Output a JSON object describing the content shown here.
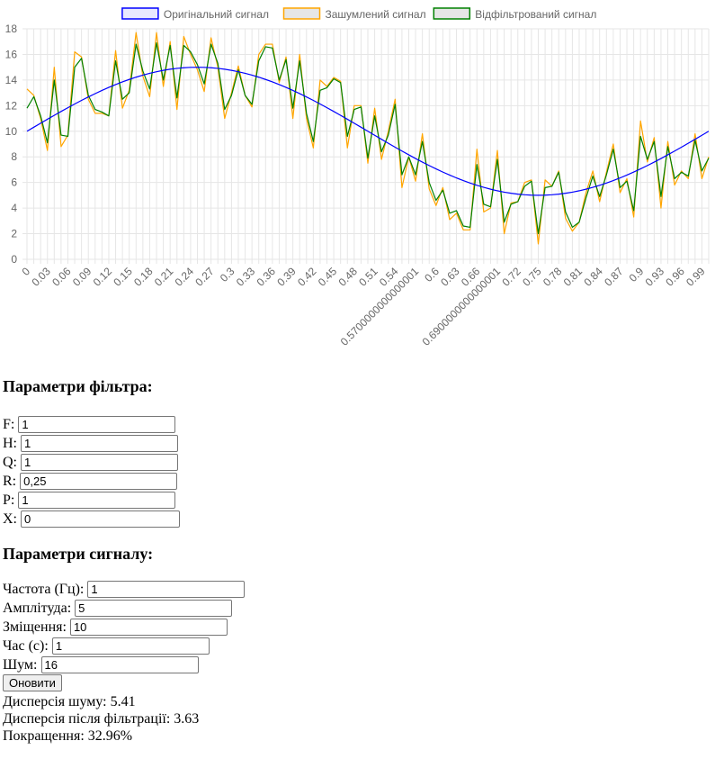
{
  "chart_data": {
    "type": "line",
    "legend_position": "top-center",
    "grid": true,
    "ylim": [
      0,
      18
    ],
    "yticks": [
      0,
      2,
      4,
      6,
      8,
      10,
      12,
      14,
      16,
      18
    ],
    "x": [
      0,
      0.01,
      0.02,
      0.03,
      0.04,
      0.05,
      0.06,
      0.07,
      0.08,
      0.09,
      0.1,
      0.11,
      0.12,
      0.13,
      0.14,
      0.15,
      0.16,
      0.17,
      0.18,
      0.19,
      0.2,
      0.21,
      0.22,
      0.23,
      0.24,
      0.25,
      0.26,
      0.27,
      0.28,
      0.29,
      0.3,
      0.31,
      0.32,
      0.33,
      0.34,
      0.35,
      0.36,
      0.37,
      0.38,
      0.39,
      0.4,
      0.41,
      0.42,
      0.43,
      0.44,
      0.45,
      0.46,
      0.47,
      0.48,
      0.49,
      0.5,
      0.51,
      0.52,
      0.53,
      0.54,
      0.55,
      0.56,
      0.57,
      0.58,
      0.59,
      0.6,
      0.61,
      0.62,
      0.63,
      0.64,
      0.65,
      0.66,
      0.67,
      0.68,
      0.69,
      0.7,
      0.71,
      0.72,
      0.73,
      0.74,
      0.75,
      0.76,
      0.77,
      0.78,
      0.79,
      0.8,
      0.81,
      0.82,
      0.83,
      0.84,
      0.85,
      0.86,
      0.87,
      0.88,
      0.89,
      0.9,
      0.91,
      0.92,
      0.93,
      0.94,
      0.95,
      0.96,
      0.97,
      0.98,
      0.99,
      1.0
    ],
    "xtick_labels": [
      "0",
      "0.03",
      "0.06",
      "0.09",
      "0.12",
      "0.15",
      "0.18",
      "0.21",
      "0.24",
      "0.27",
      "0.3",
      "0.33",
      "0.36",
      "0.39",
      "0.42",
      "0.45",
      "0.48",
      "0.51",
      "0.54",
      "0.5700000000000001",
      "0.6",
      "0.63",
      "0.66",
      "0.6900000000000001",
      "0.72",
      "0.75",
      "0.78",
      "0.81",
      "0.84",
      "0.87",
      "0.9",
      "0.93",
      "0.96",
      "0.99"
    ],
    "xtick_values": [
      0,
      0.03,
      0.06,
      0.09,
      0.12,
      0.15,
      0.18,
      0.21,
      0.24,
      0.27,
      0.3,
      0.33,
      0.36,
      0.39,
      0.42,
      0.45,
      0.48,
      0.51,
      0.54,
      0.57,
      0.6,
      0.63,
      0.66,
      0.69,
      0.72,
      0.75,
      0.78,
      0.81,
      0.84,
      0.87,
      0.9,
      0.93,
      0.96,
      0.99
    ],
    "series": [
      {
        "name": "Оригінальний сигнал",
        "color": "#0000ff",
        "fill": "#e8e8ff",
        "width": 1.2,
        "formula": "10 + 5*sin(2*pi*x)"
      },
      {
        "name": "Зашумлений сигнал",
        "color": "#ffa500",
        "fill": "#e6e6e6",
        "width": 1.2,
        "values": [
          13.3,
          12.8,
          11.0,
          8.5,
          15.0,
          8.8,
          9.7,
          16.2,
          15.8,
          12.5,
          11.4,
          11.4,
          11.2,
          16.3,
          11.8,
          13.2,
          17.7,
          14.3,
          12.7,
          17.7,
          13.5,
          17.0,
          11.7,
          17.4,
          16.0,
          14.8,
          13.1,
          17.3,
          15.0,
          11.0,
          13.0,
          15.1,
          12.8,
          11.9,
          16.0,
          16.8,
          16.8,
          13.8,
          15.8,
          11.0,
          16.0,
          11.0,
          8.7,
          14.0,
          13.5,
          14.2,
          13.9,
          8.7,
          12.0,
          12.0,
          7.5,
          11.8,
          7.8,
          10.0,
          12.5,
          5.6,
          8.0,
          6.1,
          9.8,
          5.5,
          4.2,
          5.6,
          3.1,
          3.6,
          2.3,
          2.3,
          8.6,
          3.7,
          4.0,
          8.5,
          2.0,
          4.4,
          4.5,
          6.0,
          6.2,
          1.2,
          6.2,
          5.7,
          6.9,
          3.2,
          2.2,
          2.9,
          5.2,
          6.9,
          4.5,
          6.8,
          9.0,
          5.2,
          6.3,
          3.3,
          10.8,
          7.6,
          9.5,
          4.0,
          9.2,
          5.8,
          6.9,
          6.3,
          9.8,
          6.3,
          8.0
        ]
      },
      {
        "name": "Відфільтрований сигнал",
        "color": "#008000",
        "fill": "#e6e6e6",
        "width": 1.2,
        "values": [
          11.8,
          12.7,
          11.2,
          9.1,
          14.0,
          9.7,
          9.6,
          15.0,
          15.7,
          12.8,
          11.7,
          11.5,
          11.2,
          15.5,
          12.5,
          13.0,
          16.8,
          14.7,
          13.3,
          16.9,
          14.0,
          16.7,
          12.6,
          16.7,
          16.2,
          15.2,
          13.7,
          16.8,
          15.3,
          11.7,
          12.8,
          14.8,
          12.8,
          12.1,
          15.5,
          16.6,
          16.5,
          14.0,
          15.6,
          11.8,
          15.5,
          11.4,
          9.2,
          13.2,
          13.4,
          14.1,
          13.8,
          9.6,
          11.7,
          11.9,
          7.9,
          11.2,
          8.4,
          9.7,
          12.1,
          6.6,
          8.0,
          6.6,
          9.2,
          6.0,
          4.6,
          5.4,
          3.6,
          3.8,
          2.6,
          2.5,
          7.4,
          4.3,
          4.1,
          7.8,
          2.9,
          4.3,
          4.5,
          5.7,
          6.1,
          2.0,
          5.6,
          5.7,
          6.8,
          3.7,
          2.5,
          2.9,
          4.8,
          6.5,
          4.9,
          6.6,
          8.6,
          5.6,
          6.1,
          3.8,
          9.6,
          7.8,
          9.2,
          4.9,
          8.8,
          6.3,
          6.8,
          6.5,
          9.3,
          6.9,
          7.9
        ]
      }
    ]
  },
  "filter": {
    "heading": "Параметри фільтра:",
    "fields": [
      {
        "label": "F:",
        "value": "1"
      },
      {
        "label": "H:",
        "value": "1"
      },
      {
        "label": "Q:",
        "value": "1"
      },
      {
        "label": "R:",
        "value": "0,25"
      },
      {
        "label": "P:",
        "value": "1"
      },
      {
        "label": "X:",
        "value": "0"
      }
    ]
  },
  "signal": {
    "heading": "Параметри сигналу:",
    "fields": [
      {
        "label": "Частота (Гц):",
        "value": "1"
      },
      {
        "label": "Амплітуда:",
        "value": "5"
      },
      {
        "label": "Зміщення:",
        "value": "10"
      },
      {
        "label": "Час (с):",
        "value": "1"
      },
      {
        "label": "Шум:",
        "value": "16"
      }
    ]
  },
  "update_button": "Оновити",
  "results": {
    "noise_variance": "Дисперсія шуму: 5.41",
    "filtered_variance": "Дисперсія після фільтрації: 3.63",
    "improvement": "Покращення: 32.96%"
  }
}
